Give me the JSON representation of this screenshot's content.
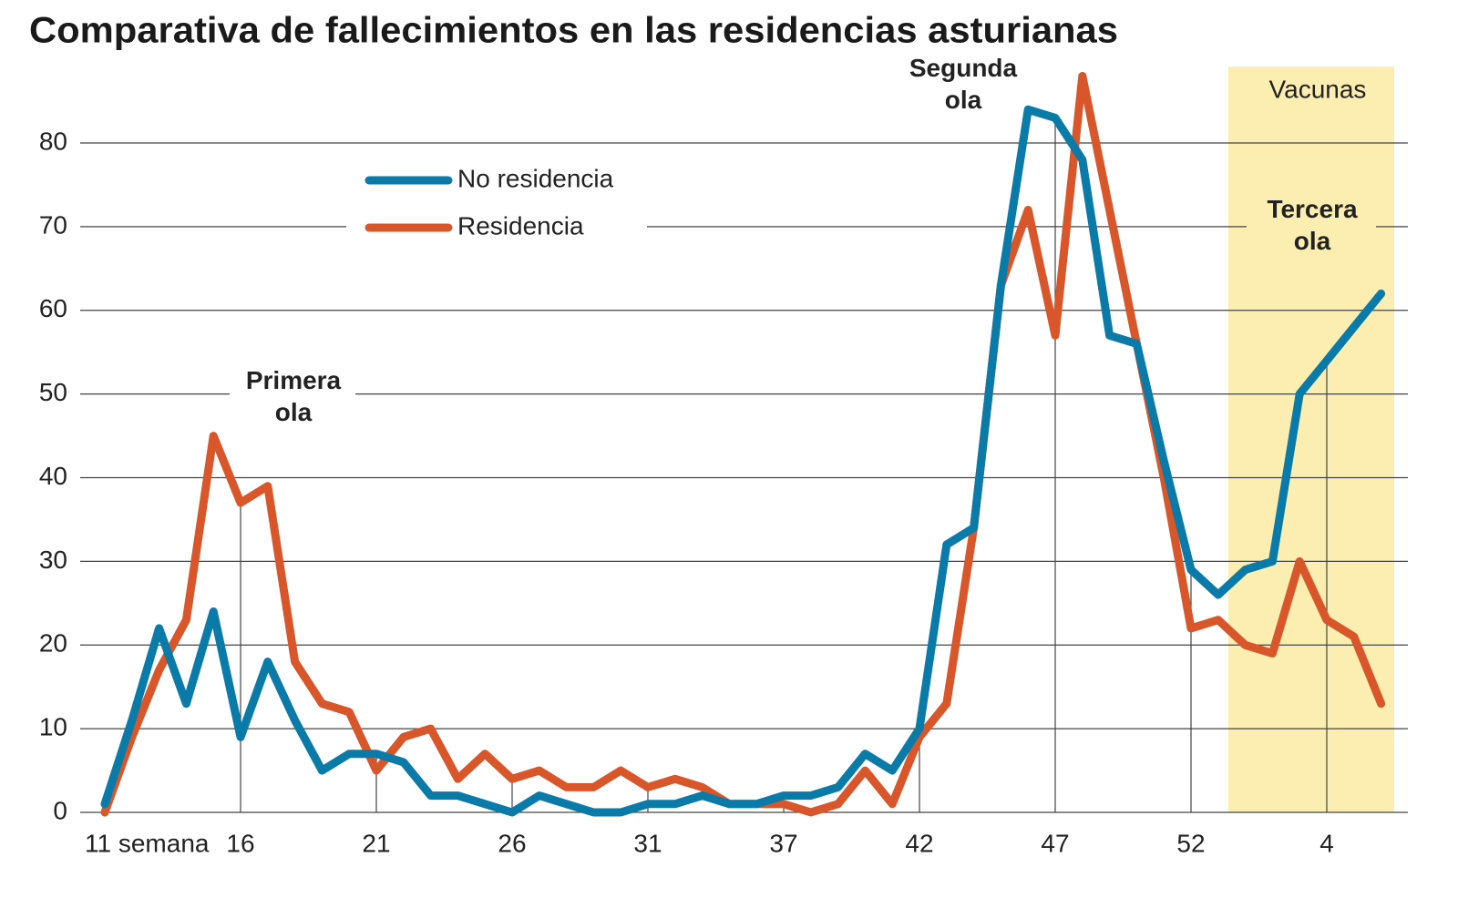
{
  "chart_data": {
    "type": "line",
    "title": "Comparativa de fallecimientos en las residencias asturianas",
    "categories": [
      "11 semana",
      null,
      null,
      null,
      null,
      "16",
      null,
      null,
      null,
      null,
      "21",
      null,
      null,
      null,
      null,
      "26",
      null,
      null,
      null,
      null,
      "31",
      null,
      null,
      null,
      null,
      "37",
      null,
      null,
      null,
      null,
      "42",
      null,
      null,
      null,
      null,
      "47",
      null,
      null,
      null,
      null,
      "52",
      null,
      null,
      null,
      null,
      "4",
      null,
      null
    ],
    "series": [
      {
        "name": "No residencia",
        "color": "#0a7aa8",
        "values": [
          1,
          11,
          22,
          13,
          24,
          9,
          18,
          11,
          5,
          7,
          7,
          6,
          2,
          2,
          1,
          0,
          2,
          1,
          0,
          0,
          1,
          1,
          2,
          1,
          1,
          2,
          2,
          3,
          7,
          5,
          10,
          32,
          34,
          63,
          84,
          83,
          78,
          57,
          56,
          42,
          29,
          26,
          29,
          30,
          50,
          54,
          58,
          62
        ]
      },
      {
        "name": "Residencia",
        "color": "#d9562b",
        "values": [
          0,
          9,
          17,
          23,
          45,
          37,
          39,
          18,
          13,
          12,
          5,
          9,
          10,
          4,
          7,
          4,
          5,
          3,
          3,
          5,
          3,
          4,
          3,
          1,
          1,
          1,
          0,
          1,
          5,
          1,
          9,
          13,
          34,
          63,
          72,
          57,
          88,
          72,
          56,
          40,
          22,
          23,
          20,
          19,
          30,
          23,
          21,
          13
        ]
      }
    ],
    "ylim": [
      0,
      88
    ],
    "yticks": [
      0,
      10,
      20,
      30,
      40,
      50,
      60,
      70,
      80
    ],
    "grid": true,
    "annotations": [
      "Primera ola",
      "Segunda ola",
      "Tercera ola"
    ],
    "shaded_region": "Vacunas"
  }
}
